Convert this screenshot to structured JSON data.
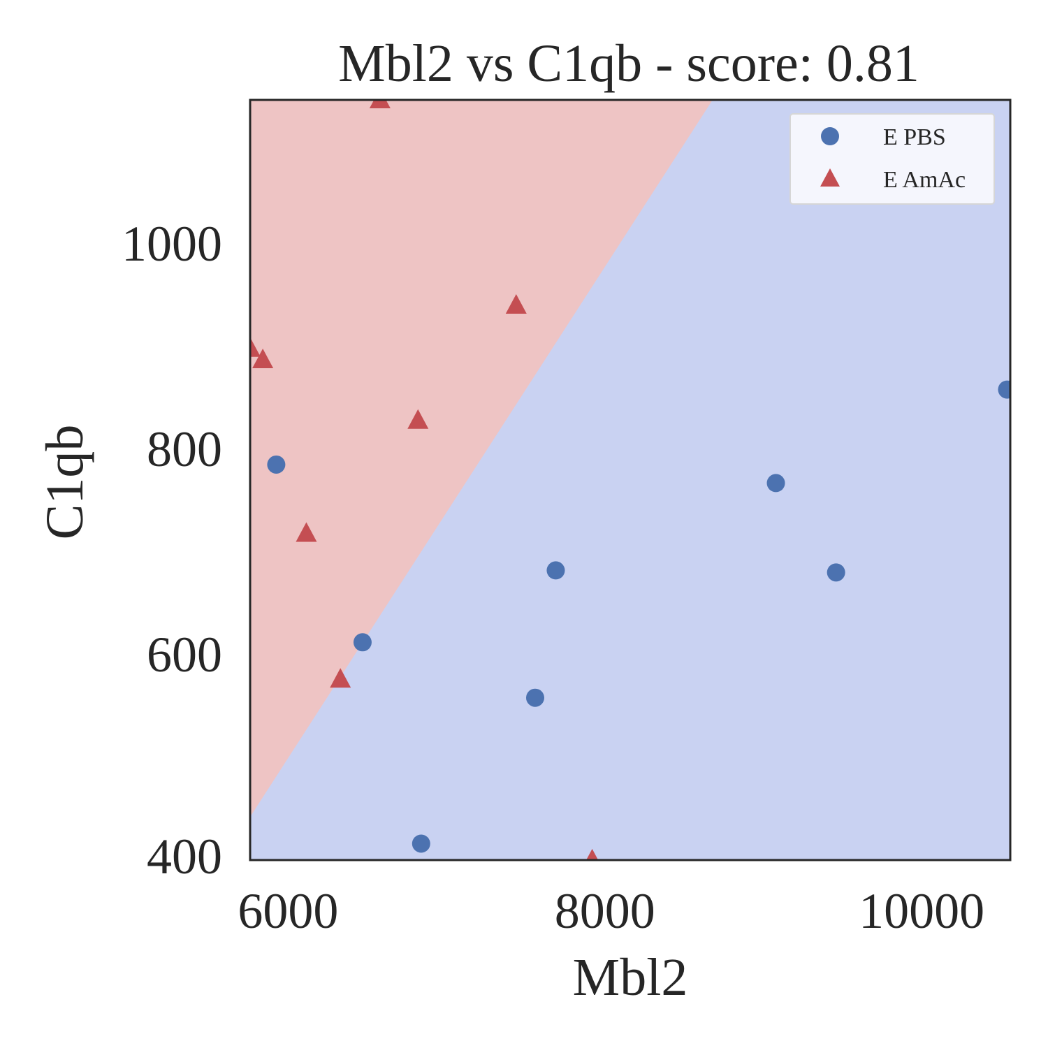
{
  "chart_data": {
    "type": "scatter",
    "title": "Mbl2 vs C1qb - score: 0.81",
    "xlabel": "Mbl2",
    "ylabel": "C1qb",
    "xlim": [
      5760,
      10560
    ],
    "ylim": [
      400,
      1140
    ],
    "x_ticks": [
      6000,
      8000,
      10000
    ],
    "y_ticks": [
      400,
      600,
      800,
      1000
    ],
    "x_tick_labels": [
      "6000",
      "8000",
      "10000"
    ],
    "y_tick_labels": [
      "400",
      "600",
      "800",
      "1000"
    ],
    "grid": false,
    "legend_position": "top-right",
    "decision_regions": {
      "boundary_line": [
        [
          5760,
          442
        ],
        [
          8680,
          1140
        ]
      ],
      "upper_left_class": "E AmAc",
      "lower_right_class": "E PBS",
      "colors": {
        "E AmAc": "#eec4c4",
        "E PBS": "#c9d2f2"
      }
    },
    "series": [
      {
        "name": "E PBS",
        "marker": "circle",
        "color": "#4c72b0",
        "points": [
          {
            "x": 5925,
            "y": 785
          },
          {
            "x": 6470,
            "y": 612
          },
          {
            "x": 6840,
            "y": 416
          },
          {
            "x": 7560,
            "y": 558
          },
          {
            "x": 7690,
            "y": 682
          },
          {
            "x": 9080,
            "y": 767
          },
          {
            "x": 9460,
            "y": 680
          },
          {
            "x": 10540,
            "y": 858
          }
        ]
      },
      {
        "name": "E AmAc",
        "marker": "triangle",
        "color": "#c44e52",
        "points": [
          {
            "x": 5760,
            "y": 898
          },
          {
            "x": 5840,
            "y": 887
          },
          {
            "x": 6115,
            "y": 718
          },
          {
            "x": 6330,
            "y": 576
          },
          {
            "x": 6580,
            "y": 1140
          },
          {
            "x": 6820,
            "y": 828
          },
          {
            "x": 7440,
            "y": 940
          },
          {
            "x": 7920,
            "y": 400
          }
        ]
      }
    ]
  }
}
